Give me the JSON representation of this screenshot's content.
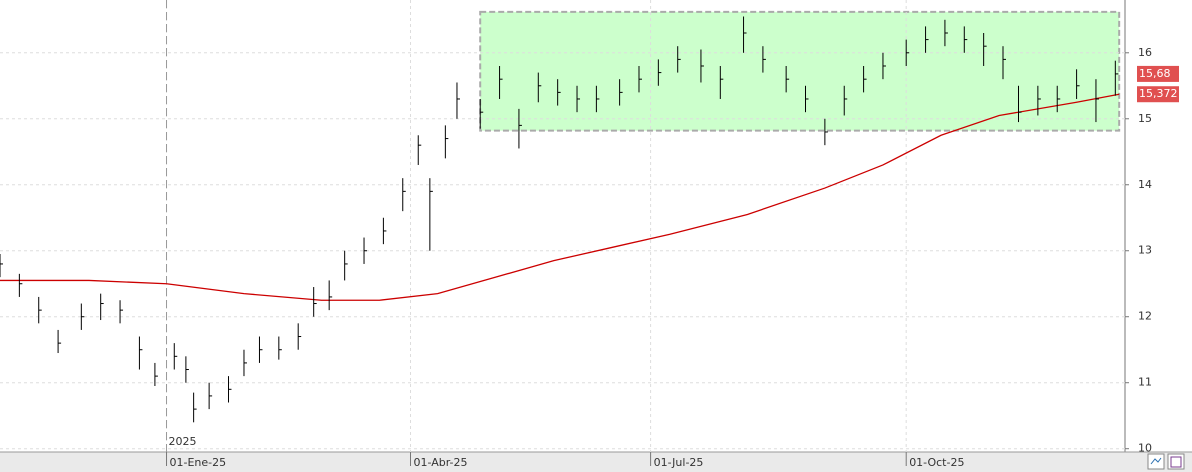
{
  "chart_data": {
    "type": "ohlc",
    "x": [
      -43,
      -38,
      -33,
      -28,
      -22,
      -17,
      -12,
      -7,
      -3,
      2,
      5,
      7,
      11,
      16,
      20,
      24,
      29,
      34,
      38,
      42,
      46,
      51,
      56,
      61,
      65,
      68,
      72,
      75,
      81,
      86,
      91,
      96,
      101,
      106,
      111,
      117,
      122,
      127,
      132,
      138,
      143,
      149,
      154,
      160,
      165,
      170,
      175,
      180,
      185,
      191,
      196,
      201,
      206,
      211,
      216,
      220,
      225,
      230,
      235,
      240,
      245
    ],
    "high": [
      12.95,
      12.65,
      12.3,
      11.8,
      12.2,
      12.35,
      12.25,
      11.7,
      11.3,
      11.6,
      11.4,
      10.85,
      11.0,
      11.1,
      11.5,
      11.7,
      11.7,
      11.9,
      12.45,
      12.55,
      13.0,
      13.2,
      13.5,
      14.1,
      14.75,
      14.1,
      14.9,
      15.55,
      15.3,
      15.8,
      15.15,
      15.7,
      15.6,
      15.5,
      15.5,
      15.6,
      15.8,
      15.9,
      16.1,
      16.05,
      15.8,
      16.55,
      16.1,
      15.8,
      15.5,
      15.0,
      15.5,
      15.8,
      16.0,
      16.2,
      16.4,
      16.5,
      16.4,
      16.3,
      16.1,
      15.5,
      15.5,
      15.5,
      15.75,
      15.6,
      15.88
    ],
    "low": [
      12.6,
      12.3,
      11.9,
      11.45,
      11.8,
      11.95,
      11.9,
      11.2,
      10.95,
      11.2,
      11.0,
      10.4,
      10.6,
      10.7,
      11.1,
      11.3,
      11.35,
      11.5,
      12.0,
      12.1,
      12.55,
      12.8,
      13.1,
      13.6,
      14.3,
      13.0,
      14.4,
      15.0,
      14.85,
      15.3,
      14.55,
      15.25,
      15.2,
      15.1,
      15.1,
      15.2,
      15.4,
      15.5,
      15.7,
      15.55,
      15.3,
      16.0,
      15.7,
      15.4,
      15.1,
      14.6,
      15.05,
      15.4,
      15.6,
      15.8,
      16.0,
      16.1,
      16.0,
      15.8,
      15.6,
      14.95,
      15.05,
      15.1,
      15.3,
      14.95,
      15.35
    ],
    "close": [
      12.8,
      12.5,
      12.1,
      11.6,
      12.0,
      12.2,
      12.1,
      11.5,
      11.1,
      11.4,
      11.2,
      10.6,
      10.8,
      10.9,
      11.3,
      11.5,
      11.5,
      11.7,
      12.2,
      12.3,
      12.8,
      13.0,
      13.3,
      13.9,
      14.6,
      13.9,
      14.7,
      15.3,
      15.1,
      15.6,
      14.9,
      15.5,
      15.4,
      15.3,
      15.3,
      15.4,
      15.6,
      15.7,
      15.9,
      15.8,
      15.6,
      16.3,
      15.9,
      15.6,
      15.3,
      14.8,
      15.3,
      15.6,
      15.8,
      16.0,
      16.2,
      16.3,
      16.2,
      16.1,
      15.9,
      15.1,
      15.3,
      15.3,
      15.5,
      15.3,
      15.68
    ],
    "ma": {
      "color": "#cc0000",
      "x": [
        -43,
        -20,
        0,
        20,
        40,
        55,
        70,
        85,
        100,
        115,
        130,
        150,
        170,
        185,
        200,
        215,
        235,
        246
      ],
      "values": [
        12.55,
        12.55,
        12.5,
        12.35,
        12.25,
        12.25,
        12.35,
        12.6,
        12.85,
        13.05,
        13.25,
        13.55,
        13.95,
        14.3,
        14.75,
        15.05,
        15.25,
        15.372
      ]
    },
    "box": {
      "x": [
        81,
        246
      ],
      "y": [
        14.82,
        16.62
      ],
      "color": "#ccffcc"
    },
    "last_labels": [
      {
        "value": 15.68,
        "label": "15,68"
      },
      {
        "value": 15.372,
        "label": "15,372"
      }
    ],
    "year_label": "2025",
    "xlim": [
      -43,
      247.5
    ],
    "ylim": [
      9.95,
      16.8
    ],
    "xticks": [
      {
        "value": 0,
        "label": "01-Ene-25"
      },
      {
        "value": 63,
        "label": "01-Abr-25"
      },
      {
        "value": 125,
        "label": "01-Jul-25"
      },
      {
        "value": 191,
        "label": "01-Oct-25"
      }
    ],
    "yticks": [
      10,
      11,
      12,
      13,
      14,
      15,
      16
    ],
    "grid": true
  }
}
